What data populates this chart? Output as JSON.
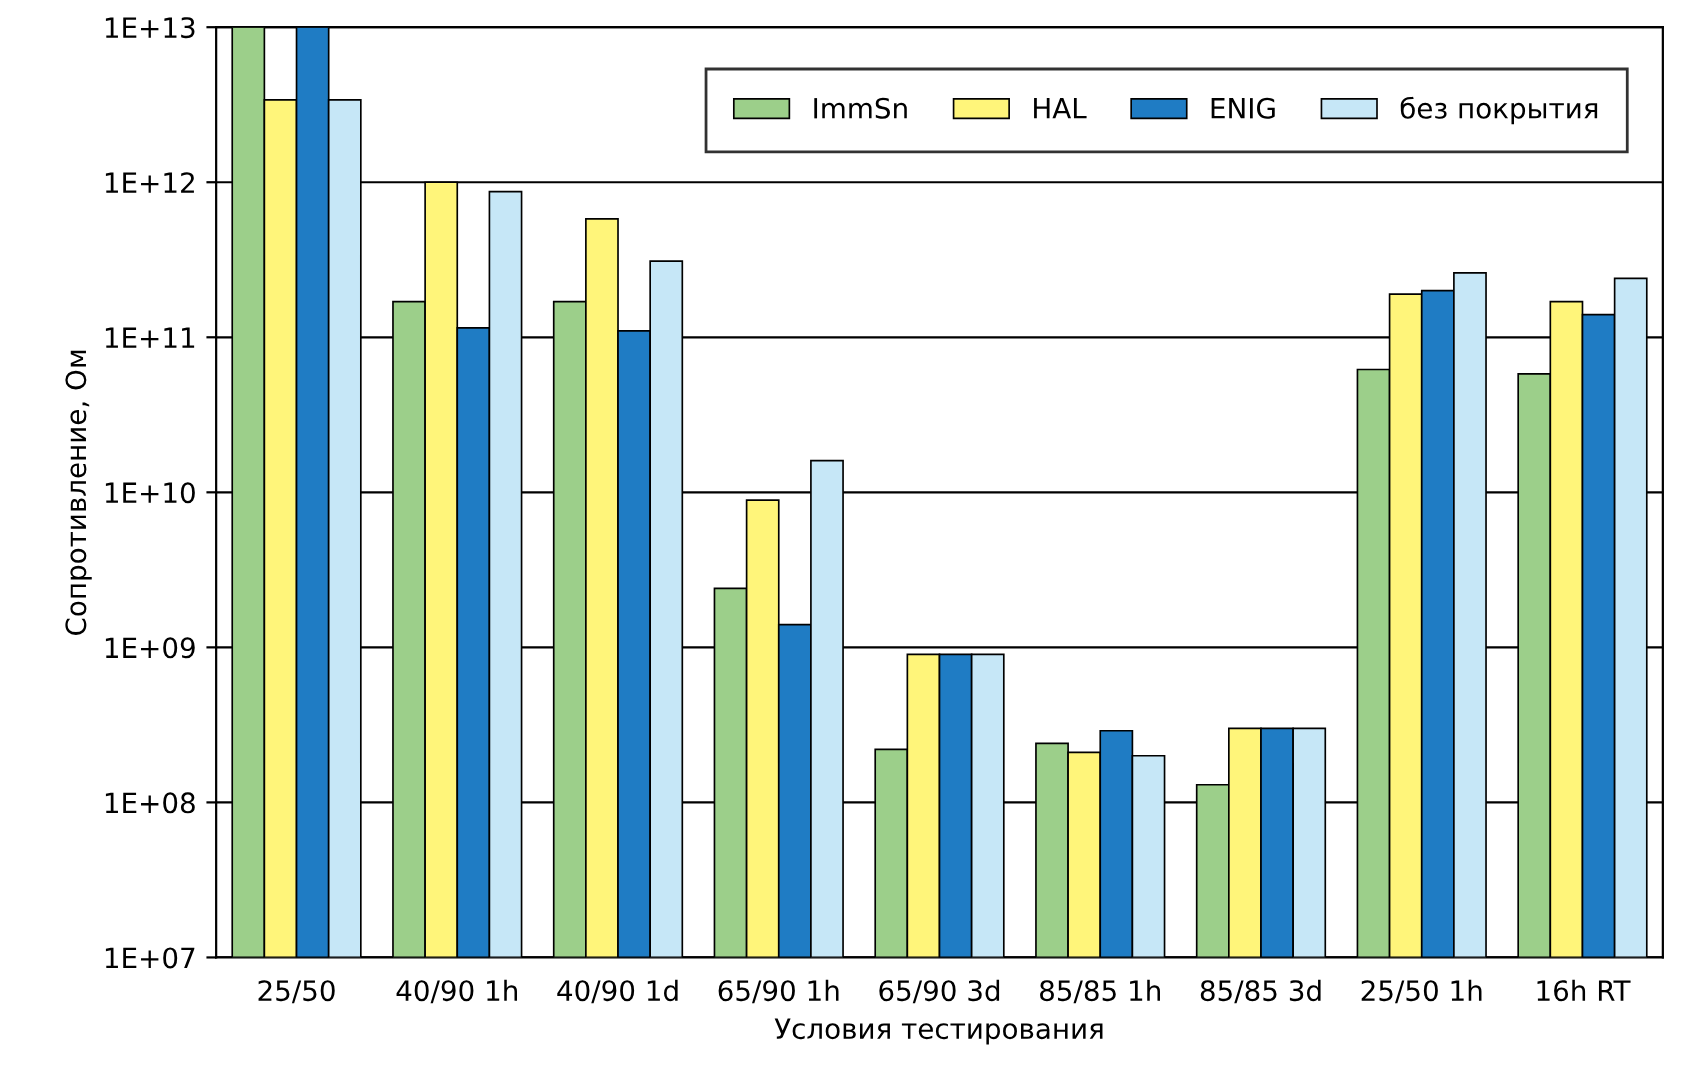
{
  "chart_data": {
    "type": "bar",
    "xlabel": "Условия тестирования",
    "ylabel": "Сопротивление, Ом",
    "categories": [
      "25/50",
      "40/90 1h",
      "40/90 1d",
      "65/90 1h",
      "65/90 3d",
      "85/85 1h",
      "85/85 3d",
      "25/50 1h",
      "16h RT"
    ],
    "series": [
      {
        "name": "ImmSn",
        "color": "#9ccf8a",
        "values": [
          10000000000000.0,
          170000000000.0,
          170000000000.0,
          2400000000.0,
          220000000.0,
          240000000.0,
          130000000.0,
          62000000000.0,
          58000000000.0
        ]
      },
      {
        "name": "HAL",
        "color": "#fff57a",
        "values": [
          3400000000000.0,
          1000000000000.0,
          580000000000.0,
          8900000000.0,
          900000000.0,
          210000000.0,
          300000000.0,
          190000000000.0,
          170000000000.0
        ]
      },
      {
        "name": "ENIG",
        "color": "#1f7cc4",
        "values": [
          10000000000000.0,
          115000000000.0,
          110000000000.0,
          1400000000.0,
          900000000.0,
          290000000.0,
          300000000.0,
          200000000000.0,
          140000000000.0
        ]
      },
      {
        "name": "без покрытия",
        "color": "#c6e7f7",
        "values": [
          3400000000000.0,
          870000000000.0,
          310000000000.0,
          16000000000.0,
          900000000.0,
          200000000.0,
          300000000.0,
          260000000000.0,
          240000000000.0
        ]
      }
    ],
    "log": true,
    "ylim": [
      10000000.0,
      10000000000000.0
    ],
    "yticks": [
      {
        "value": 10000000.0,
        "label": "1E+07"
      },
      {
        "value": 100000000.0,
        "label": "1E+08"
      },
      {
        "value": 1000000000.0,
        "label": "1E+09"
      },
      {
        "value": 10000000000.0,
        "label": "1E+10"
      },
      {
        "value": 100000000000.0,
        "label": "1E+11"
      },
      {
        "value": 1000000000000.0,
        "label": "1E+12"
      },
      {
        "value": 10000000000000.0,
        "label": "1E+13"
      }
    ],
    "grid": "y",
    "legend": "top right"
  }
}
